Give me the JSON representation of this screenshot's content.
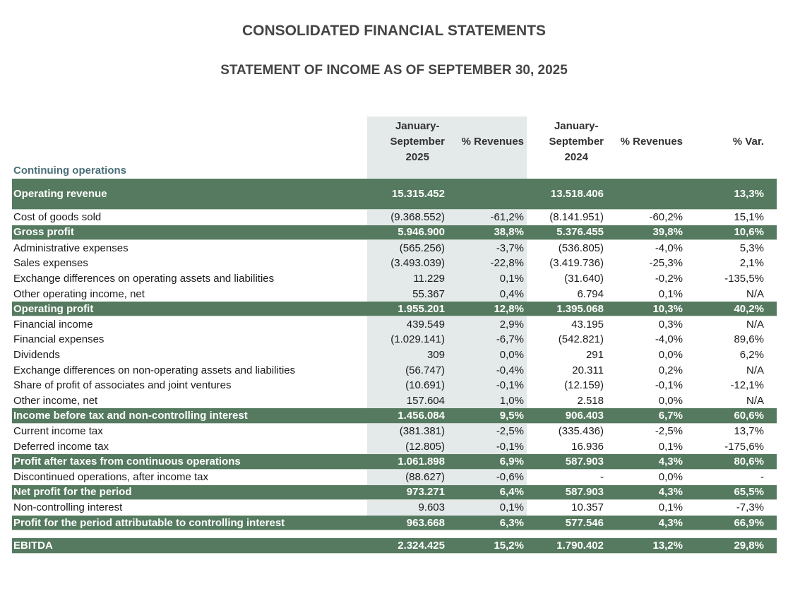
{
  "title": "CONSOLIDATED FINANCIAL STATEMENTS",
  "subtitle": "STATEMENT OF INCOME AS OF SEPTEMBER 30, 2025",
  "section_label": "Continuing operations",
  "colors": {
    "band": "#557a5f",
    "shade": "#e4e9e9",
    "section": "#4a6f78"
  },
  "columns": [
    [
      "January-",
      "September",
      "2025"
    ],
    [
      "% Revenues"
    ],
    [
      "January-",
      "September",
      "2024"
    ],
    [
      "% Revenues"
    ],
    [
      "% Var."
    ]
  ],
  "rows": [
    {
      "label": "Operating revenue",
      "type": "band",
      "tall": true,
      "values": [
        "15.315.452",
        "",
        "13.518.406",
        "",
        "13,3%"
      ]
    },
    {
      "label": "Cost of goods sold",
      "type": "normal",
      "values": [
        "(9.368.552)",
        "-61,2%",
        "(8.141.951)",
        "-60,2%",
        "15,1%"
      ]
    },
    {
      "label": "Gross profit",
      "type": "band",
      "values": [
        "5.946.900",
        "38,8%",
        "5.376.455",
        "39,8%",
        "10,6%"
      ]
    },
    {
      "label": "Administrative expenses",
      "type": "normal",
      "values": [
        "(565.256)",
        "-3,7%",
        "(536.805)",
        "-4,0%",
        "5,3%"
      ]
    },
    {
      "label": "Sales expenses",
      "type": "normal",
      "values": [
        "(3.493.039)",
        "-22,8%",
        "(3.419.736)",
        "-25,3%",
        "2,1%"
      ]
    },
    {
      "label": "Exchange differences on operating assets and liabilities",
      "type": "normal",
      "values": [
        "11.229",
        "0,1%",
        "(31.640)",
        "-0,2%",
        "-135,5%"
      ]
    },
    {
      "label": "Other operating income, net",
      "type": "normal",
      "values": [
        "55.367",
        "0,4%",
        "6.794",
        "0,1%",
        "N/A"
      ]
    },
    {
      "label": "Operating profit",
      "type": "band",
      "values": [
        "1.955.201",
        "12,8%",
        "1.395.068",
        "10,3%",
        "40,2%"
      ]
    },
    {
      "label": "Financial income",
      "type": "normal",
      "values": [
        "439.549",
        "2,9%",
        "43.195",
        "0,3%",
        "N/A"
      ]
    },
    {
      "label": "Financial expenses",
      "type": "normal",
      "values": [
        "(1.029.141)",
        "-6,7%",
        "(542.821)",
        "-4,0%",
        "89,6%"
      ]
    },
    {
      "label": "Dividends",
      "type": "normal",
      "values": [
        "309",
        "0,0%",
        "291",
        "0,0%",
        "6,2%"
      ]
    },
    {
      "label": "Exchange differences on non-operating assets and liabilities",
      "type": "normal",
      "values": [
        "(56.747)",
        "-0,4%",
        "20.311",
        "0,2%",
        "N/A"
      ]
    },
    {
      "label": "Share of profit of associates and joint ventures",
      "type": "normal",
      "values": [
        "(10.691)",
        "-0,1%",
        "(12.159)",
        "-0,1%",
        "-12,1%"
      ]
    },
    {
      "label": "Other income, net",
      "type": "normal",
      "values": [
        "157.604",
        "1,0%",
        "2.518",
        "0,0%",
        "N/A"
      ]
    },
    {
      "label": "Income before tax and non-controlling interest",
      "type": "band",
      "values": [
        "1.456.084",
        "9,5%",
        "906.403",
        "6,7%",
        "60,6%"
      ]
    },
    {
      "label": "Current income tax",
      "type": "normal",
      "values": [
        "(381.381)",
        "-2,5%",
        "(335.436)",
        "-2,5%",
        "13,7%"
      ]
    },
    {
      "label": "Deferred income tax",
      "type": "normal",
      "values": [
        "(12.805)",
        "-0,1%",
        "16.936",
        "0,1%",
        "-175,6%"
      ]
    },
    {
      "label": "Profit after taxes from continuous operations",
      "type": "band",
      "values": [
        "1.061.898",
        "6,9%",
        "587.903",
        "4,3%",
        "80,6%"
      ]
    },
    {
      "label": "Discontinued operations, after income tax",
      "type": "normal",
      "values": [
        "(88.627)",
        "-0,6%",
        "-",
        "0,0%",
        "-"
      ]
    },
    {
      "label": "Net profit for the period",
      "type": "band",
      "values": [
        "973.271",
        "6,4%",
        "587.903",
        "4,3%",
        "65,5%"
      ]
    },
    {
      "label": "Non-controlling interest",
      "type": "normal",
      "values": [
        "9.603",
        "0,1%",
        "10.357",
        "0,1%",
        "-7,3%"
      ]
    },
    {
      "label": "Profit for the period attributable to controlling interest",
      "type": "band",
      "values": [
        "963.668",
        "6,3%",
        "577.546",
        "4,3%",
        "66,9%"
      ]
    },
    {
      "label": "EBITDA",
      "type": "band",
      "gap": true,
      "values": [
        "2.324.425",
        "15,2%",
        "1.790.402",
        "13,2%",
        "29,8%"
      ]
    }
  ]
}
